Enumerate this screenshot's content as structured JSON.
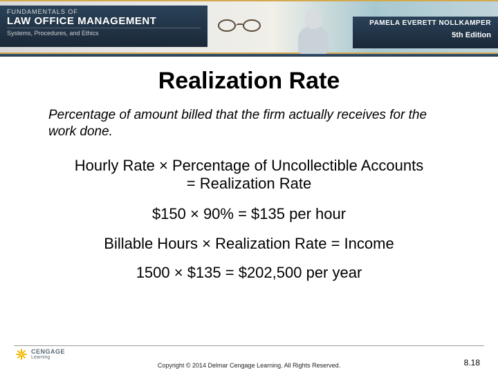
{
  "banner": {
    "fundamentals": "FUNDAMENTALS OF",
    "title": "LAW OFFICE MANAGEMENT",
    "subtitle": "Systems, Procedures, and Ethics",
    "author": "PAMELA EVERETT NOLLKAMPER",
    "edition": "5th Edition"
  },
  "slide": {
    "title": "Realization Rate",
    "definition": "Percentage of amount billed that the firm actually receives for the work done.",
    "line1a": "Hourly Rate × Percentage of Uncollectible Accounts",
    "line1b": "= Realization Rate",
    "line2": "$150 × 90% = $135 per hour",
    "line3": "Billable Hours × Realization Rate = Income",
    "line4": "1500 × $135 = $202,500 per year"
  },
  "footer": {
    "logo_name": "CENGAGE",
    "logo_sub": "Learning",
    "copyright": "Copyright © 2014 Delmar Cengage Learning. All Rights Reserved.",
    "page": "8.18"
  },
  "colors": {
    "banner_dark": "#1a2838",
    "accent_gold": "#d4a94e",
    "logo_yellow": "#f5b800"
  }
}
